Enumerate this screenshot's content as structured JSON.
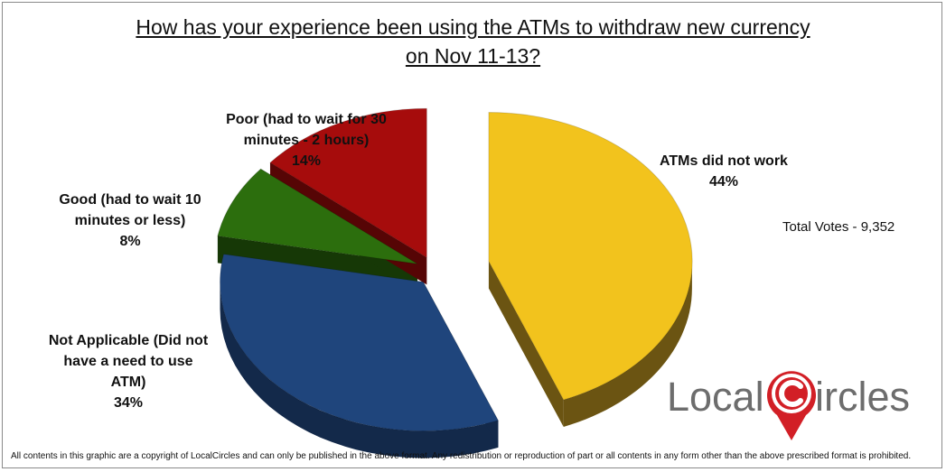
{
  "title": {
    "line1": "How has your experience been using the ATMs to withdraw new currency",
    "line2": "on Nov 11-13?"
  },
  "chart_data": {
    "type": "pie",
    "title": "How has your experience been using the ATMs to withdraw new currency on Nov 11-13?",
    "slices": [
      {
        "label": "ATMs did not work",
        "value": 44,
        "value_label": "44%",
        "color": "#f2c31d",
        "side_color": "#6b5412"
      },
      {
        "label": "Not Applicable (Did not have a need to use ATM)",
        "value": 34,
        "value_label": "34%",
        "color": "#1f457c",
        "side_color": "#13294a"
      },
      {
        "label": "Good (had to wait 10 minutes or less)",
        "value": 8,
        "value_label": "8%",
        "color": "#2c6e0d",
        "side_color": "#163806"
      },
      {
        "label": "Poor (had to wait for 30 minutes - 2 hours)",
        "value": 14,
        "value_label": "14%",
        "color": "#a60c0c",
        "side_color": "#560505"
      }
    ]
  },
  "labels": {
    "atms": {
      "line1": "ATMs did not work",
      "pct": "44%"
    },
    "na": {
      "line1": "Not Applicable (Did not",
      "line2": "have a need to use",
      "line3": "ATM)",
      "pct": "34%"
    },
    "good": {
      "line1": "Good (had to wait 10",
      "line2": "minutes or less)",
      "pct": "8%"
    },
    "poor": {
      "line1": "Poor (had to wait for 30",
      "line2": "minutes - 2 hours)",
      "pct": "14%"
    }
  },
  "total_votes": "Total Votes - 9,352",
  "logo": {
    "text_part1": "Local",
    "text_part2": "ircles",
    "accent_color": "#d21f26"
  },
  "footer": "All contents in this graphic are a copyright of LocalCircles and can only be published in the above format. Any redistribution or reproduction of part or all contents in any form other than the above prescribed format is prohibited."
}
